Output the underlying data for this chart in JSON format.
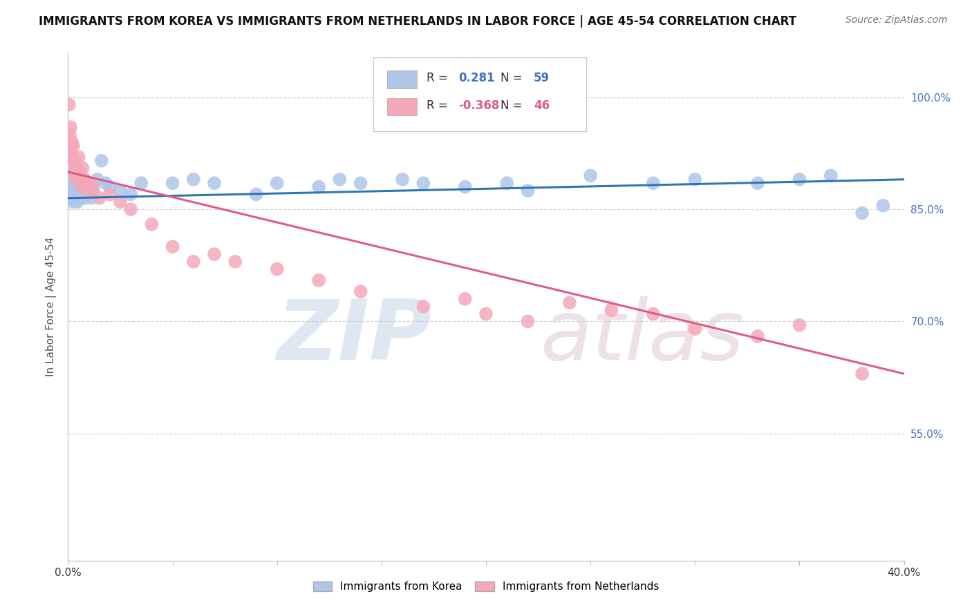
{
  "title": "IMMIGRANTS FROM KOREA VS IMMIGRANTS FROM NETHERLANDS IN LABOR FORCE | AGE 45-54 CORRELATION CHART",
  "source": "Source: ZipAtlas.com",
  "ylabel": "In Labor Force | Age 45-54",
  "korea_R": 0.281,
  "korea_N": 59,
  "netherlands_R": -0.368,
  "netherlands_N": 46,
  "korea_color": "#aec6e8",
  "netherlands_color": "#f4a8b8",
  "korea_line_color": "#2e75b6",
  "netherlands_line_color": "#e05a8a",
  "legend_label_korea": "Immigrants from Korea",
  "legend_label_netherlands": "Immigrants from Netherlands",
  "xlim": [
    0.0,
    40.0
  ],
  "ylim": [
    38.0,
    106.0
  ],
  "right_yticks": [
    55.0,
    70.0,
    85.0,
    100.0
  ],
  "xticks": [
    0.0,
    5.0,
    10.0,
    15.0,
    20.0,
    25.0,
    30.0,
    35.0,
    40.0
  ],
  "background_color": "#ffffff",
  "title_fontsize": 12,
  "source_fontsize": 10,
  "axis_label_fontsize": 11,
  "scatter_size": 200,
  "korea_x": [
    0.05,
    0.08,
    0.1,
    0.12,
    0.15,
    0.18,
    0.2,
    0.22,
    0.25,
    0.28,
    0.3,
    0.32,
    0.35,
    0.38,
    0.4,
    0.42,
    0.45,
    0.48,
    0.5,
    0.55,
    0.6,
    0.65,
    0.7,
    0.75,
    0.8,
    0.85,
    0.9,
    0.95,
    1.0,
    1.1,
    1.2,
    1.4,
    1.6,
    1.8,
    2.0,
    2.5,
    3.0,
    3.5,
    5.0,
    6.0,
    7.0,
    9.0,
    10.0,
    12.0,
    13.0,
    14.0,
    16.0,
    17.0,
    19.0,
    21.0,
    22.0,
    25.0,
    28.0,
    30.0,
    33.0,
    35.0,
    36.5,
    38.0,
    39.0
  ],
  "korea_y": [
    87.5,
    88.0,
    86.5,
    89.0,
    87.0,
    86.5,
    88.5,
    87.0,
    86.0,
    87.5,
    89.0,
    87.5,
    88.0,
    86.5,
    87.0,
    88.5,
    86.0,
    87.5,
    88.0,
    86.5,
    87.5,
    89.0,
    87.0,
    88.0,
    86.5,
    87.0,
    88.5,
    87.0,
    88.0,
    86.5,
    87.5,
    89.0,
    91.5,
    88.5,
    88.0,
    87.5,
    87.0,
    88.5,
    88.5,
    89.0,
    88.5,
    87.0,
    88.5,
    88.0,
    89.0,
    88.5,
    89.0,
    88.5,
    88.0,
    88.5,
    87.5,
    89.5,
    88.5,
    89.0,
    88.5,
    89.0,
    89.5,
    84.5,
    85.5
  ],
  "netherlands_x": [
    0.05,
    0.08,
    0.1,
    0.12,
    0.15,
    0.18,
    0.2,
    0.22,
    0.25,
    0.28,
    0.3,
    0.35,
    0.4,
    0.45,
    0.5,
    0.55,
    0.6,
    0.65,
    0.7,
    0.8,
    0.9,
    1.0,
    1.2,
    1.5,
    2.0,
    2.5,
    3.0,
    4.0,
    5.0,
    6.0,
    7.0,
    8.0,
    10.0,
    12.0,
    14.0,
    17.0,
    19.0,
    20.0,
    22.0,
    24.0,
    26.0,
    28.0,
    30.0,
    33.0,
    35.0,
    38.0
  ],
  "netherlands_y": [
    99.0,
    95.0,
    92.5,
    96.0,
    93.5,
    94.0,
    91.5,
    92.0,
    93.5,
    90.0,
    91.5,
    90.0,
    89.0,
    90.5,
    92.0,
    90.0,
    89.5,
    88.0,
    90.5,
    89.0,
    88.5,
    87.5,
    88.0,
    86.5,
    87.0,
    86.0,
    85.0,
    83.0,
    80.0,
    78.0,
    79.0,
    78.0,
    77.0,
    75.5,
    74.0,
    72.0,
    73.0,
    71.0,
    70.0,
    72.5,
    71.5,
    71.0,
    69.0,
    68.0,
    69.5,
    63.0
  ],
  "watermark_zip_color": "#c5d5e8",
  "watermark_atlas_color": "#e0c8d5"
}
